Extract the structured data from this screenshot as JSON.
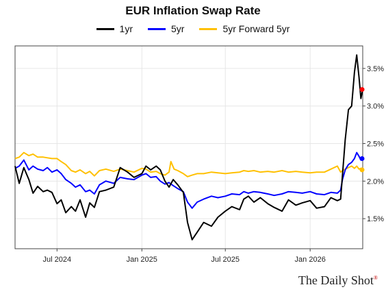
{
  "chart_data": {
    "type": "line",
    "title": "EUR Inflation Swap Rate",
    "y_tick_suffix": "%",
    "ylim": [
      1.1,
      3.8
    ],
    "y_ticks": [
      1.5,
      2.0,
      2.5,
      3.0,
      3.5
    ],
    "x_range": [
      "2024-04-01",
      "2026-04-25"
    ],
    "x_ticks": [
      {
        "date": "2024-07-01",
        "label": "Jul 2024"
      },
      {
        "date": "2025-01-01",
        "label": "Jan 2025"
      },
      {
        "date": "2025-07-01",
        "label": "Jul 2025"
      },
      {
        "date": "2026-01-01",
        "label": "Jan 2026"
      }
    ],
    "grid": true,
    "legend_placement": "top-center",
    "series": [
      {
        "name": "1yr",
        "color": "#000000",
        "points": [
          [
            "2024-04-01",
            2.2
          ],
          [
            "2024-04-10",
            1.97
          ],
          [
            "2024-04-20",
            2.18
          ],
          [
            "2024-05-01",
            2.02
          ],
          [
            "2024-05-10",
            1.84
          ],
          [
            "2024-05-20",
            1.93
          ],
          [
            "2024-06-01",
            1.86
          ],
          [
            "2024-06-10",
            1.88
          ],
          [
            "2024-06-20",
            1.85
          ],
          [
            "2024-07-01",
            1.7
          ],
          [
            "2024-07-10",
            1.75
          ],
          [
            "2024-07-20",
            1.58
          ],
          [
            "2024-08-01",
            1.66
          ],
          [
            "2024-08-10",
            1.6
          ],
          [
            "2024-08-20",
            1.75
          ],
          [
            "2024-09-01",
            1.52
          ],
          [
            "2024-09-10",
            1.71
          ],
          [
            "2024-09-20",
            1.65
          ],
          [
            "2024-10-01",
            1.86
          ],
          [
            "2024-10-15",
            1.88
          ],
          [
            "2024-11-01",
            1.92
          ],
          [
            "2024-11-15",
            2.18
          ],
          [
            "2024-12-01",
            2.12
          ],
          [
            "2024-12-15",
            2.05
          ],
          [
            "2025-01-01",
            2.1
          ],
          [
            "2025-01-10",
            2.2
          ],
          [
            "2025-01-20",
            2.15
          ],
          [
            "2025-02-01",
            2.2
          ],
          [
            "2025-02-10",
            2.15
          ],
          [
            "2025-02-20",
            2.0
          ],
          [
            "2025-03-01",
            1.92
          ],
          [
            "2025-03-10",
            2.02
          ],
          [
            "2025-03-20",
            1.95
          ],
          [
            "2025-04-01",
            1.85
          ],
          [
            "2025-04-10",
            1.45
          ],
          [
            "2025-04-20",
            1.22
          ],
          [
            "2025-05-01",
            1.32
          ],
          [
            "2025-05-15",
            1.45
          ],
          [
            "2025-06-01",
            1.4
          ],
          [
            "2025-06-15",
            1.52
          ],
          [
            "2025-07-01",
            1.6
          ],
          [
            "2025-07-15",
            1.66
          ],
          [
            "2025-08-01",
            1.62
          ],
          [
            "2025-08-10",
            1.76
          ],
          [
            "2025-08-20",
            1.8
          ],
          [
            "2025-09-01",
            1.72
          ],
          [
            "2025-09-15",
            1.78
          ],
          [
            "2025-10-01",
            1.7
          ],
          [
            "2025-10-15",
            1.65
          ],
          [
            "2025-11-01",
            1.6
          ],
          [
            "2025-11-15",
            1.75
          ],
          [
            "2025-12-01",
            1.68
          ],
          [
            "2025-12-15",
            1.71
          ],
          [
            "2026-01-01",
            1.74
          ],
          [
            "2026-01-15",
            1.64
          ],
          [
            "2026-02-01",
            1.66
          ],
          [
            "2026-02-15",
            1.78
          ],
          [
            "2026-03-01",
            1.74
          ],
          [
            "2026-03-08",
            1.76
          ],
          [
            "2026-03-12",
            2.08
          ],
          [
            "2026-03-18",
            2.55
          ],
          [
            "2026-03-25",
            2.95
          ],
          [
            "2026-04-01",
            3.0
          ],
          [
            "2026-04-07",
            3.45
          ],
          [
            "2026-04-12",
            3.68
          ],
          [
            "2026-04-17",
            3.38
          ],
          [
            "2026-04-21",
            3.1
          ],
          [
            "2026-04-25",
            3.22
          ]
        ]
      },
      {
        "name": "5yr",
        "color": "#0000ff",
        "points": [
          [
            "2024-04-01",
            2.17
          ],
          [
            "2024-04-10",
            2.2
          ],
          [
            "2024-04-20",
            2.28
          ],
          [
            "2024-05-01",
            2.15
          ],
          [
            "2024-05-10",
            2.2
          ],
          [
            "2024-05-20",
            2.16
          ],
          [
            "2024-06-01",
            2.14
          ],
          [
            "2024-06-10",
            2.18
          ],
          [
            "2024-06-20",
            2.12
          ],
          [
            "2024-07-01",
            2.15
          ],
          [
            "2024-07-10",
            2.1
          ],
          [
            "2024-07-20",
            2.02
          ],
          [
            "2024-08-01",
            1.97
          ],
          [
            "2024-08-10",
            1.92
          ],
          [
            "2024-08-20",
            1.95
          ],
          [
            "2024-09-01",
            1.86
          ],
          [
            "2024-09-10",
            1.88
          ],
          [
            "2024-09-20",
            1.83
          ],
          [
            "2024-10-01",
            1.95
          ],
          [
            "2024-10-15",
            2.0
          ],
          [
            "2024-11-01",
            1.97
          ],
          [
            "2024-11-15",
            2.05
          ],
          [
            "2024-12-01",
            2.03
          ],
          [
            "2024-12-15",
            2.02
          ],
          [
            "2025-01-01",
            2.08
          ],
          [
            "2025-01-10",
            2.1
          ],
          [
            "2025-01-20",
            2.05
          ],
          [
            "2025-02-01",
            2.06
          ],
          [
            "2025-02-10",
            2.0
          ],
          [
            "2025-02-20",
            1.96
          ],
          [
            "2025-03-01",
            1.98
          ],
          [
            "2025-03-10",
            1.94
          ],
          [
            "2025-03-20",
            1.9
          ],
          [
            "2025-04-01",
            1.86
          ],
          [
            "2025-04-10",
            1.72
          ],
          [
            "2025-04-20",
            1.64
          ],
          [
            "2025-05-01",
            1.72
          ],
          [
            "2025-05-15",
            1.76
          ],
          [
            "2025-06-01",
            1.8
          ],
          [
            "2025-06-15",
            1.78
          ],
          [
            "2025-07-01",
            1.8
          ],
          [
            "2025-07-15",
            1.83
          ],
          [
            "2025-08-01",
            1.82
          ],
          [
            "2025-08-10",
            1.86
          ],
          [
            "2025-08-20",
            1.84
          ],
          [
            "2025-09-01",
            1.86
          ],
          [
            "2025-09-15",
            1.85
          ],
          [
            "2025-10-01",
            1.83
          ],
          [
            "2025-10-15",
            1.81
          ],
          [
            "2025-11-01",
            1.83
          ],
          [
            "2025-11-15",
            1.86
          ],
          [
            "2025-12-01",
            1.85
          ],
          [
            "2025-12-15",
            1.84
          ],
          [
            "2026-01-01",
            1.86
          ],
          [
            "2026-01-15",
            1.83
          ],
          [
            "2026-02-01",
            1.82
          ],
          [
            "2026-02-15",
            1.85
          ],
          [
            "2026-03-01",
            1.84
          ],
          [
            "2026-03-08",
            1.88
          ],
          [
            "2026-03-12",
            2.02
          ],
          [
            "2026-03-18",
            2.15
          ],
          [
            "2026-03-25",
            2.22
          ],
          [
            "2026-04-01",
            2.25
          ],
          [
            "2026-04-07",
            2.3
          ],
          [
            "2026-04-12",
            2.38
          ],
          [
            "2026-04-17",
            2.33
          ],
          [
            "2026-04-21",
            2.28
          ],
          [
            "2026-04-25",
            2.3
          ]
        ]
      },
      {
        "name": "5yr Forward 5yr",
        "color": "#ffc000",
        "points": [
          [
            "2024-04-01",
            2.3
          ],
          [
            "2024-04-10",
            2.32
          ],
          [
            "2024-04-20",
            2.38
          ],
          [
            "2024-05-01",
            2.34
          ],
          [
            "2024-05-10",
            2.36
          ],
          [
            "2024-05-20",
            2.32
          ],
          [
            "2024-06-01",
            2.32
          ],
          [
            "2024-06-10",
            2.31
          ],
          [
            "2024-06-20",
            2.3
          ],
          [
            "2024-07-01",
            2.3
          ],
          [
            "2024-07-10",
            2.26
          ],
          [
            "2024-07-20",
            2.22
          ],
          [
            "2024-08-01",
            2.14
          ],
          [
            "2024-08-10",
            2.12
          ],
          [
            "2024-08-20",
            2.15
          ],
          [
            "2024-09-01",
            2.1
          ],
          [
            "2024-09-10",
            2.13
          ],
          [
            "2024-09-20",
            2.07
          ],
          [
            "2024-10-01",
            2.14
          ],
          [
            "2024-10-15",
            2.16
          ],
          [
            "2024-11-01",
            2.13
          ],
          [
            "2024-11-15",
            2.16
          ],
          [
            "2024-12-01",
            2.14
          ],
          [
            "2024-12-15",
            2.12
          ],
          [
            "2025-01-01",
            2.17
          ],
          [
            "2025-01-10",
            2.16
          ],
          [
            "2025-01-20",
            2.12
          ],
          [
            "2025-02-01",
            2.13
          ],
          [
            "2025-02-10",
            2.1
          ],
          [
            "2025-02-20",
            2.08
          ],
          [
            "2025-03-01",
            2.12
          ],
          [
            "2025-03-05",
            2.26
          ],
          [
            "2025-03-12",
            2.16
          ],
          [
            "2025-03-20",
            2.14
          ],
          [
            "2025-04-01",
            2.1
          ],
          [
            "2025-04-10",
            2.06
          ],
          [
            "2025-04-20",
            2.08
          ],
          [
            "2025-05-01",
            2.1
          ],
          [
            "2025-05-15",
            2.1
          ],
          [
            "2025-06-01",
            2.12
          ],
          [
            "2025-06-15",
            2.11
          ],
          [
            "2025-07-01",
            2.1
          ],
          [
            "2025-07-15",
            2.11
          ],
          [
            "2025-08-01",
            2.12
          ],
          [
            "2025-08-10",
            2.14
          ],
          [
            "2025-08-20",
            2.13
          ],
          [
            "2025-09-01",
            2.14
          ],
          [
            "2025-09-15",
            2.12
          ],
          [
            "2025-10-01",
            2.13
          ],
          [
            "2025-10-15",
            2.12
          ],
          [
            "2025-11-01",
            2.14
          ],
          [
            "2025-11-15",
            2.12
          ],
          [
            "2025-12-01",
            2.13
          ],
          [
            "2025-12-15",
            2.12
          ],
          [
            "2026-01-01",
            2.11
          ],
          [
            "2026-01-15",
            2.12
          ],
          [
            "2026-02-01",
            2.12
          ],
          [
            "2026-02-15",
            2.16
          ],
          [
            "2026-03-01",
            2.2
          ],
          [
            "2026-03-08",
            2.12
          ],
          [
            "2026-03-12",
            2.14
          ],
          [
            "2026-03-18",
            2.16
          ],
          [
            "2026-03-25",
            2.18
          ],
          [
            "2026-04-01",
            2.2
          ],
          [
            "2026-04-07",
            2.17
          ],
          [
            "2026-04-12",
            2.2
          ],
          [
            "2026-04-17",
            2.16
          ],
          [
            "2026-04-21",
            2.17
          ],
          [
            "2026-04-25",
            2.15
          ]
        ]
      }
    ],
    "end_markers": [
      {
        "series": "1yr",
        "date": "2026-04-25",
        "value": 3.22,
        "color": "#ff0000"
      },
      {
        "series": "5yr",
        "date": "2026-04-25",
        "value": 2.3,
        "color": "#0000ff"
      },
      {
        "series": "5yr Forward 5yr",
        "date": "2026-04-25",
        "value": 2.15,
        "color": "#ffc000"
      }
    ]
  },
  "watermark": {
    "text": "The Daily Shot",
    "mark": "®"
  }
}
